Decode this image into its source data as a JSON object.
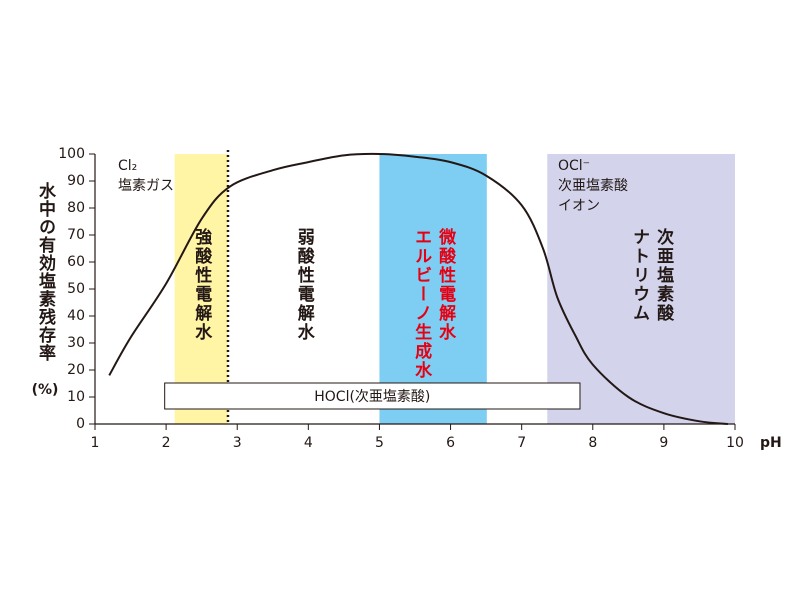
{
  "chart_data": {
    "type": "line",
    "ylabel": [
      "水中の有効塩素残存率",
      "(%)"
    ],
    "xlabel": "pH",
    "xlim": [
      1,
      10
    ],
    "xticks": [
      1,
      2,
      3,
      4,
      5,
      6,
      7,
      8,
      9,
      10
    ],
    "ylim": [
      0,
      100
    ],
    "yticks": [
      0,
      10,
      20,
      30,
      40,
      50,
      60,
      70,
      80,
      90,
      100
    ],
    "series": [
      {
        "color": "#231815",
        "x": [
          1.2,
          1.5,
          2,
          2.5,
          2.9,
          3.5,
          4,
          4.5,
          5,
          5.5,
          6,
          6.5,
          7,
          7.3,
          7.5,
          7.75,
          8,
          8.5,
          9,
          9.5,
          9.9
        ],
        "values": [
          18,
          32,
          52,
          76,
          88,
          94,
          97,
          99.5,
          100,
          99,
          97,
          92,
          81,
          65,
          47,
          33,
          22,
          10,
          4,
          1,
          0
        ]
      }
    ],
    "regions": [
      {
        "from": 2.12,
        "to": 2.87,
        "color": "#fff5a5",
        "labels": [
          "強酸性電解水"
        ],
        "label_color": "#231815"
      },
      {
        "from": 2.87,
        "to": 5.0,
        "color": null,
        "labels": [
          "弱酸性電解水"
        ],
        "label_color": "#231815"
      },
      {
        "from": 5.0,
        "to": 6.51,
        "color": "#7ecef4",
        "labels": [
          "微酸性電解水",
          "エルビーノ生成水"
        ],
        "label_color": "#e60012"
      },
      {
        "from": 7.36,
        "to": 10,
        "color": "#d3d4ec",
        "labels": [
          "次亜塩素酸",
          "ナトリウム"
        ],
        "label_color": "#231815"
      }
    ],
    "divider_x": 2.87,
    "box": {
      "label": "HOCl(次亜塩素酸)",
      "from": 1.98,
      "to": 7.82
    },
    "annotations": [
      [
        "Cl₂",
        "塩素ガス"
      ],
      [
        "OCl⁻",
        "次亜塩素酸",
        "イオン"
      ]
    ]
  }
}
